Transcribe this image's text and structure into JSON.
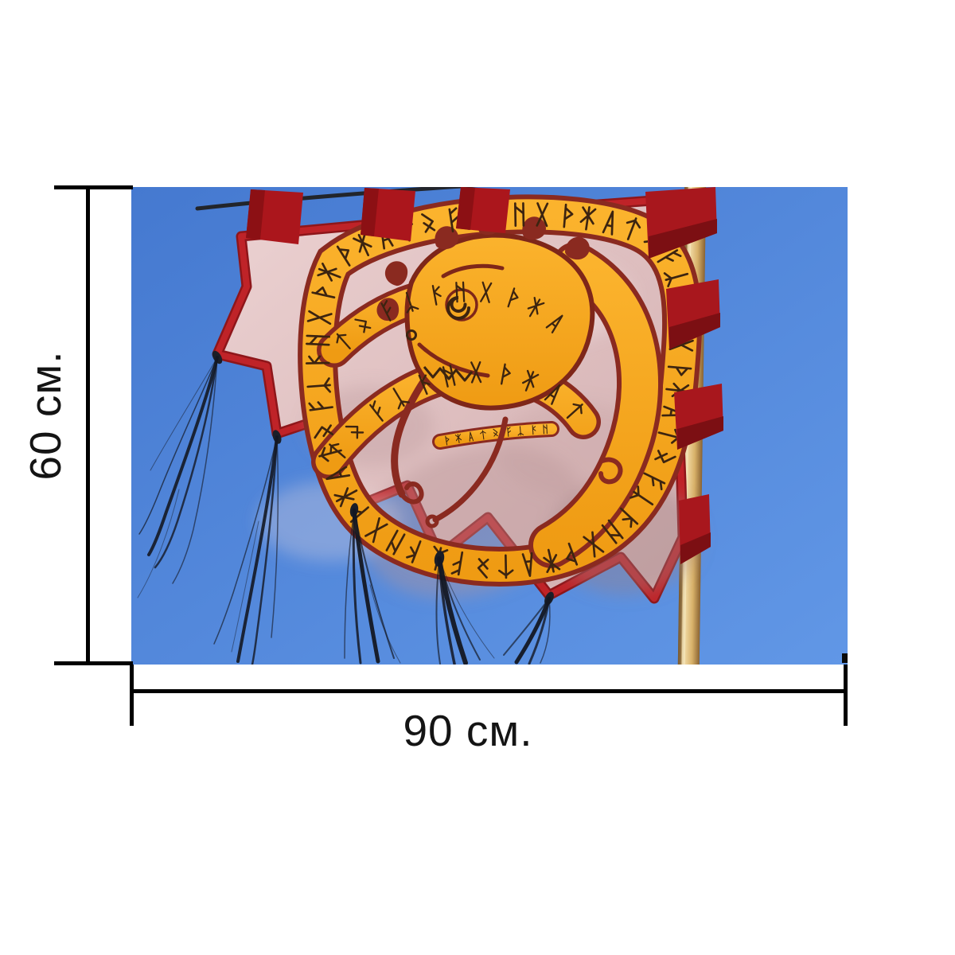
{
  "figure": {
    "type": "product-dimension-image",
    "subject": "Viking dragon banner with runes on a wooden pole against blue sky"
  },
  "dimensions": {
    "height_label": "60 см.",
    "width_label": "90 см."
  },
  "photo": {
    "elements": {
      "banner": "pink cloth banner with zigzag fringe and red border",
      "design": "yellow runic serpent knot with dragon head",
      "pole": "wooden pole with red straps",
      "tassels": "black horsehair tassels",
      "rope": "dark cord through top loops"
    },
    "colors": {
      "sky_top": "#4579d0",
      "sky_bottom": "#6197e6",
      "cloth": "#e3c6c6",
      "cloth_shadow": "#b99698",
      "border_red": "#bf2328",
      "tab_red": "#ab161c",
      "strap_shadow": "#7c0f13",
      "band_yellow": "#f6a81f",
      "band_yellow_deep": "#ef9b13",
      "band_outline": "#8a2a20",
      "rune_ink": "#3c2410",
      "pole_light": "#f0d9a4",
      "pole_mid": "#d8b169",
      "pole_dark": "#8a6332",
      "tassel": "#141823",
      "line_color": "#000000"
    }
  }
}
